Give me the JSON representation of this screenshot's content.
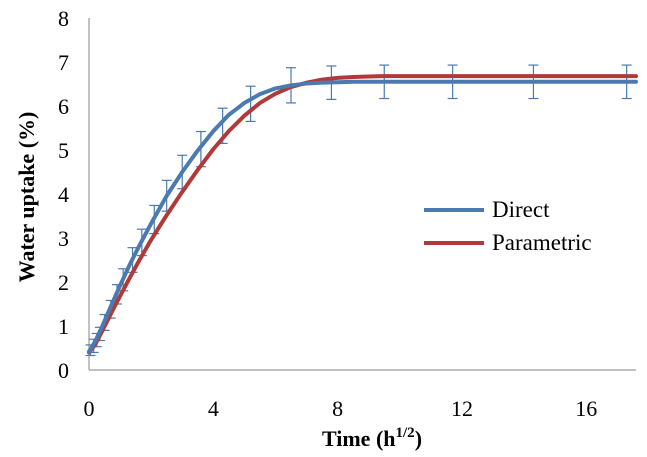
{
  "chart_data": {
    "type": "line",
    "title": "",
    "xlabel": "Time (h",
    "xlabel_sup": "1/2",
    "xlabel_end": ")",
    "ylabel": "Water uptake (%)",
    "xlim": [
      0,
      17.6
    ],
    "ylim": [
      0,
      8
    ],
    "xticks": [
      0,
      4,
      8,
      12,
      16
    ],
    "yticks": [
      0,
      1,
      2,
      3,
      4,
      5,
      6,
      7,
      8
    ],
    "grid": false,
    "legend_position": "right-middle",
    "series": [
      {
        "name": "Direct",
        "color": "#4a7ab0",
        "x": [
          0,
          0.2,
          0.4,
          0.6,
          0.8,
          1.0,
          1.3,
          1.6,
          2.0,
          2.5,
          3.0,
          3.5,
          4.0,
          4.5,
          5.0,
          5.5,
          6.0,
          6.5,
          7.0,
          7.5,
          8.0,
          8.5,
          9.0,
          10.0,
          11.0,
          12.0,
          13.0,
          14.0,
          15.0,
          16.0,
          17.6
        ],
        "y": [
          0.42,
          0.65,
          0.95,
          1.28,
          1.6,
          1.92,
          2.38,
          2.8,
          3.33,
          3.96,
          4.5,
          4.99,
          5.43,
          5.8,
          6.07,
          6.27,
          6.4,
          6.47,
          6.51,
          6.53,
          6.54,
          6.55,
          6.55,
          6.55,
          6.55,
          6.55,
          6.55,
          6.55,
          6.55,
          6.55,
          6.55
        ]
      },
      {
        "name": "Parametric",
        "color": "#b03a3a",
        "x": [
          0,
          0.2,
          0.4,
          0.6,
          0.8,
          1.0,
          1.3,
          1.6,
          2.0,
          2.5,
          3.0,
          3.5,
          4.0,
          4.5,
          5.0,
          5.5,
          6.0,
          6.5,
          7.0,
          7.5,
          8.0,
          8.5,
          9.0,
          9.5,
          10.0,
          11.0,
          12.0,
          13.0,
          14.0,
          15.0,
          16.0,
          17.6
        ],
        "y": [
          0.4,
          0.58,
          0.85,
          1.13,
          1.41,
          1.68,
          2.08,
          2.47,
          2.96,
          3.52,
          4.05,
          4.55,
          5.02,
          5.43,
          5.78,
          6.07,
          6.28,
          6.43,
          6.53,
          6.6,
          6.64,
          6.66,
          6.67,
          6.68,
          6.68,
          6.68,
          6.68,
          6.68,
          6.68,
          6.68,
          6.68,
          6.68
        ]
      }
    ],
    "error_bars": {
      "series": "Direct",
      "color": "#4a7ab0",
      "points": [
        {
          "x": 0.05,
          "y": 0.45,
          "err": 0.12
        },
        {
          "x": 0.15,
          "y": 0.55,
          "err": 0.15
        },
        {
          "x": 0.25,
          "y": 0.68,
          "err": 0.15
        },
        {
          "x": 0.35,
          "y": 0.82,
          "err": 0.15
        },
        {
          "x": 0.5,
          "y": 1.08,
          "err": 0.18
        },
        {
          "x": 0.7,
          "y": 1.38,
          "err": 0.2
        },
        {
          "x": 0.9,
          "y": 1.72,
          "err": 0.22
        },
        {
          "x": 1.1,
          "y": 2.05,
          "err": 0.25
        },
        {
          "x": 1.4,
          "y": 2.5,
          "err": 0.28
        },
        {
          "x": 1.7,
          "y": 2.9,
          "err": 0.3
        },
        {
          "x": 2.1,
          "y": 3.42,
          "err": 0.32
        },
        {
          "x": 2.5,
          "y": 3.96,
          "err": 0.35
        },
        {
          "x": 3.0,
          "y": 4.5,
          "err": 0.38
        },
        {
          "x": 3.6,
          "y": 5.02,
          "err": 0.4
        },
        {
          "x": 4.3,
          "y": 5.55,
          "err": 0.4
        },
        {
          "x": 5.2,
          "y": 6.05,
          "err": 0.4
        },
        {
          "x": 6.5,
          "y": 6.47,
          "err": 0.4
        },
        {
          "x": 7.8,
          "y": 6.53,
          "err": 0.38
        },
        {
          "x": 9.5,
          "y": 6.55,
          "err": 0.38
        },
        {
          "x": 11.7,
          "y": 6.55,
          "err": 0.38
        },
        {
          "x": 14.3,
          "y": 6.55,
          "err": 0.38
        },
        {
          "x": 17.3,
          "y": 6.55,
          "err": 0.38
        }
      ]
    }
  }
}
